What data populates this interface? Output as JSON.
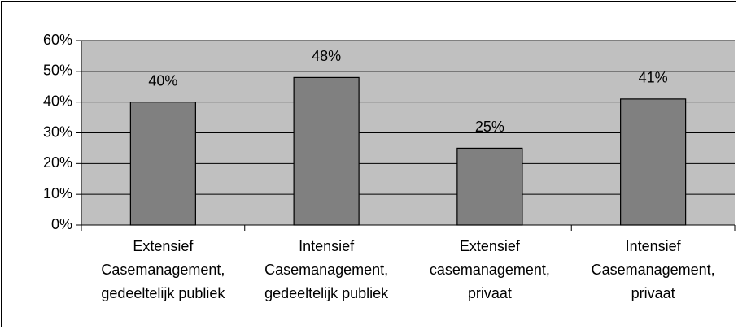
{
  "chart_data": {
    "type": "bar",
    "categories": [
      [
        "Extensief",
        "Casemanagement,",
        "gedeeltelijk publiek"
      ],
      [
        "Intensief",
        "Casemanagement,",
        "gedeeltelijk publiek"
      ],
      [
        "Extensief",
        "casemanagement,",
        "privaat"
      ],
      [
        "Intensief",
        "Casemanagement,",
        "privaat"
      ]
    ],
    "values": [
      40,
      48,
      25,
      41
    ],
    "value_labels": [
      "40%",
      "48%",
      "25%",
      "41%"
    ],
    "color": "#808080",
    "plot_background": "#c0c0c0",
    "ylim": [
      0,
      60
    ],
    "yticks": [
      {
        "value": 0,
        "label": "0%"
      },
      {
        "value": 10,
        "label": "10%"
      },
      {
        "value": 20,
        "label": "20%"
      },
      {
        "value": 30,
        "label": "30%"
      },
      {
        "value": 40,
        "label": "40%"
      },
      {
        "value": 50,
        "label": "50%"
      },
      {
        "value": 60,
        "label": "60%"
      }
    ],
    "grid": true
  }
}
